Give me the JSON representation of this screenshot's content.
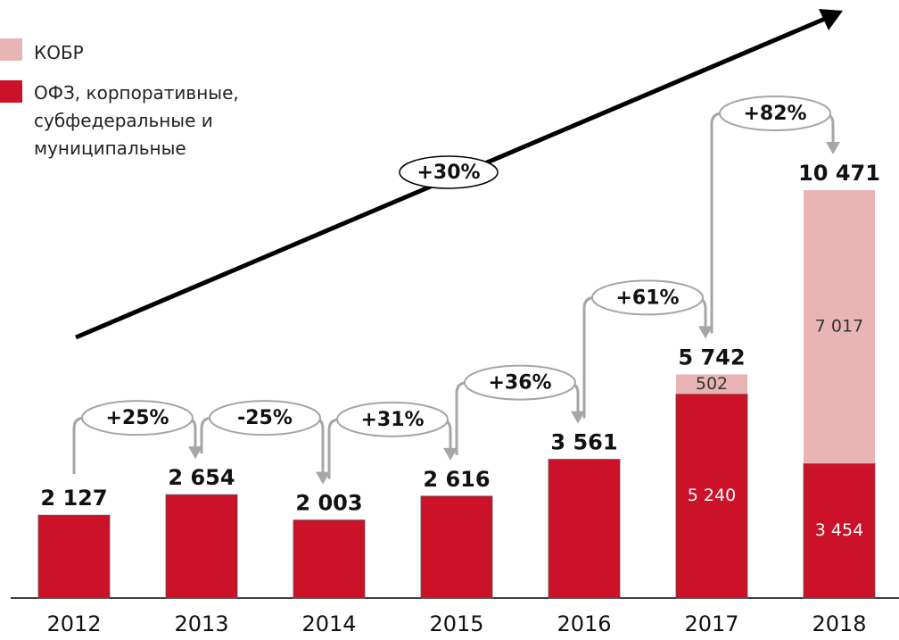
{
  "chart_data": {
    "type": "stacked_bar",
    "categories": [
      "2012",
      "2013",
      "2014",
      "2015",
      "2016",
      "2017",
      "2018"
    ],
    "series": [
      {
        "name": "ОФЗ, корпоративные, субфедеральные и муниципальные",
        "color": "#cc1229",
        "values": [
          2127,
          2654,
          2003,
          2616,
          3561,
          5240,
          3454
        ],
        "value_labels": [
          null,
          null,
          null,
          null,
          null,
          "5 240",
          "3 454"
        ],
        "label_color": "#ffffff"
      },
      {
        "name": "КОБР",
        "color": "#e8b5b4",
        "values": [
          null,
          null,
          null,
          null,
          null,
          502,
          7017
        ],
        "value_labels": [
          null,
          null,
          null,
          null,
          null,
          "502",
          "7 017"
        ],
        "label_color": "#333333"
      }
    ],
    "totals": [
      2127,
      2654,
      2003,
      2616,
      3561,
      5742,
      10471
    ],
    "total_labels": [
      "2 127",
      "2 654",
      "2 003",
      "2 616",
      "3 561",
      "5 742",
      "10 471"
    ],
    "growth_labels": [
      "+25%",
      "-25%",
      "+31%",
      "+36%",
      "+61%",
      "+82%"
    ],
    "trend_label": "+30%"
  }
}
